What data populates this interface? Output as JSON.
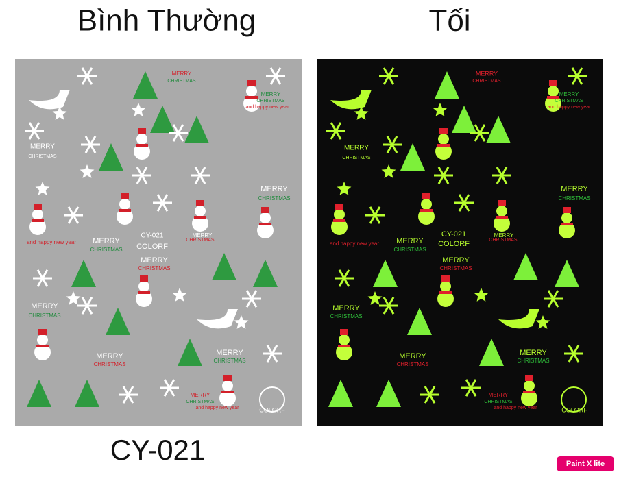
{
  "header": {
    "left_title": "Bình Thường",
    "right_title": "Tối"
  },
  "panels": [
    {
      "labels": [
        "MERRY",
        "CHRISTMAS",
        "MERRY",
        "CHRISTMAS",
        "and happy new year",
        "MERRY",
        "CHRISTMAS",
        "MERRY",
        "CHRISTMAS",
        "CY-021",
        "COLORF",
        "and happy new year",
        "MERRY",
        "CHRISTMAS",
        "MERRY",
        "CHRISTMAS",
        "MERRY",
        "CHRISTMAS",
        "MERRY",
        "CHRISTMAS",
        "MERRY",
        "CHRISTMAS",
        "MERRY",
        "CHRISTMAS",
        "MERRY",
        "CHRISTMAS",
        "and happy new year",
        "COLORF"
      ]
    },
    {
      "labels": [
        "MERRY",
        "CHRISTMAS",
        "MERRY",
        "CHRISTMAS",
        "and happy new year",
        "MERRY",
        "CHRISTMAS",
        "MERRY",
        "CHRISTMAS",
        "CY-021",
        "COLORF",
        "and happy new year",
        "MERRY",
        "CHRISTMAS",
        "MERRY",
        "CHRISTMAS",
        "MERRY",
        "CHRISTMAS",
        "MERRY",
        "CHRISTMAS",
        "MERRY",
        "CHRISTMAS",
        "MERRY",
        "CHRISTMAS",
        "MERRY",
        "CHRISTMAS",
        "and happy new year",
        "COLORF"
      ]
    }
  ],
  "footer": {
    "code": "CY-021"
  },
  "badge": "Paint X lite"
}
